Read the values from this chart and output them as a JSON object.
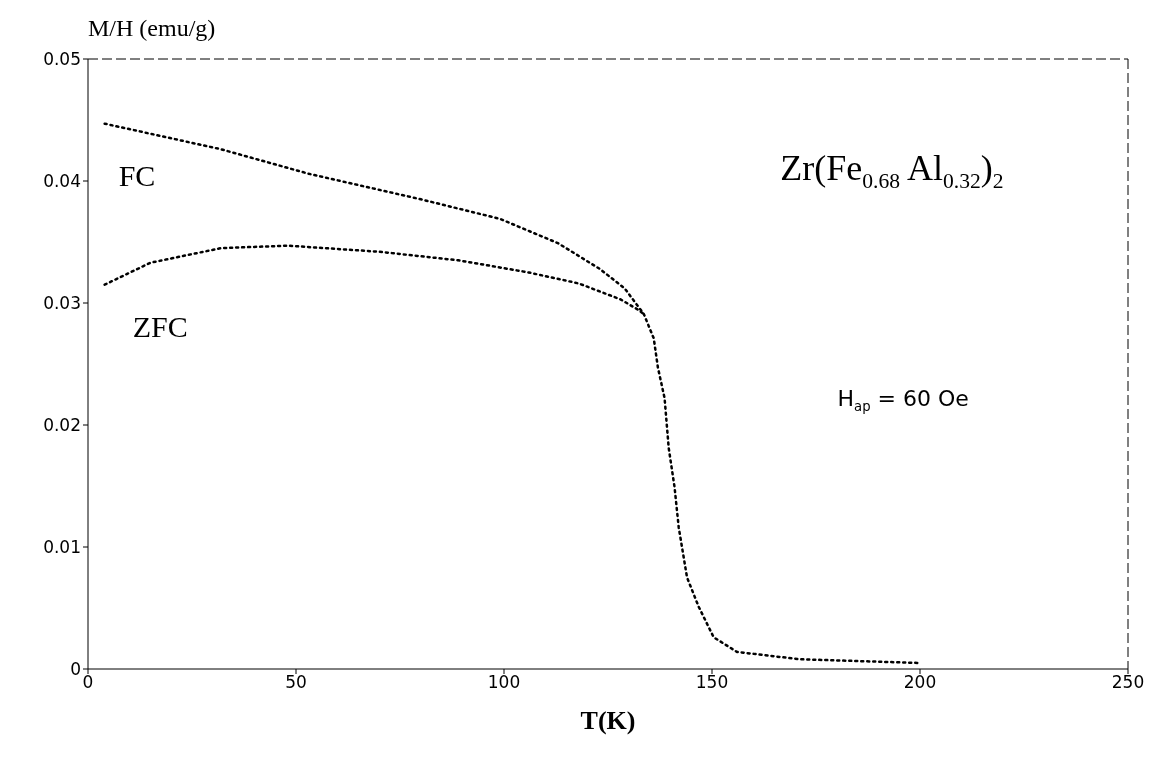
{
  "chart_data": {
    "type": "line",
    "xlabel": "T(K)",
    "ylabel": "M/H (emu/g)",
    "xlim": [
      0,
      250
    ],
    "xticks": [
      0,
      50,
      100,
      150,
      200,
      250
    ],
    "ylim": [
      0,
      0.05
    ],
    "yticks": [
      0,
      0.01,
      0.02,
      0.03,
      0.04,
      0.05
    ],
    "marker": "none",
    "line_style": "dotted",
    "annotations": [
      "Zr(Fe$_{0.68}$ Al$_{0.32}$)$_{2}$",
      "H$_{ap}$ = 60 Oe"
    ],
    "series": [
      {
        "name": "FC",
        "color": "#000000",
        "x": [
          4,
          32,
          53,
          80,
          99,
          113,
          123,
          129,
          133.6,
          136,
          137,
          138.6,
          139.6,
          141,
          142,
          144,
          146.8,
          150.4,
          156,
          171,
          199.5
        ],
        "values": [
          0.0447,
          0.0426,
          0.0406,
          0.0385,
          0.0369,
          0.0349,
          0.0328,
          0.0312,
          0.0291,
          0.0271,
          0.0247,
          0.0222,
          0.0181,
          0.0149,
          0.0116,
          0.0075,
          0.0051,
          0.0026,
          0.0014,
          0.0008,
          0.0005
        ]
      },
      {
        "name": "ZFC",
        "color": "#000000",
        "x": [
          4,
          15,
          32,
          48,
          70,
          89,
          106,
          118,
          128,
          132,
          133.6
        ],
        "values": [
          0.0315,
          0.0333,
          0.0345,
          0.0347,
          0.0342,
          0.0335,
          0.0325,
          0.0316,
          0.0303,
          0.0295,
          0.0291
        ]
      }
    ]
  }
}
